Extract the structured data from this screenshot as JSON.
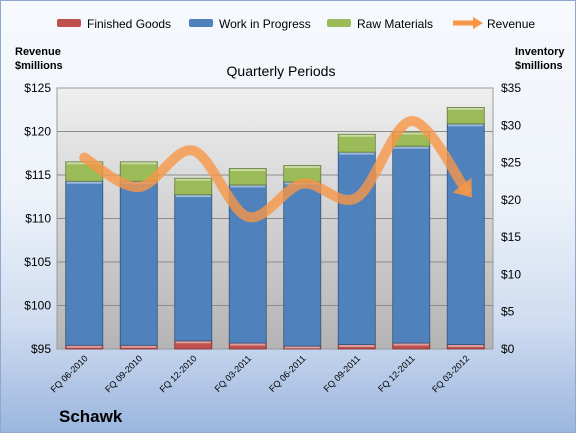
{
  "chart_data": {
    "type": "bar",
    "subtitle": "Quarterly Periods",
    "company": "Schawk",
    "left_axis_title": [
      "Revenue",
      "$millions"
    ],
    "right_axis_title": [
      "Inventory",
      "$millions"
    ],
    "categories": [
      "FQ 06-2010",
      "FQ 09-2010",
      "FQ 12-2010",
      "FQ 03-2011",
      "FQ 06-2011",
      "FQ 09-2011",
      "FQ 12-2011",
      "FQ 03-2012"
    ],
    "series": [
      {
        "name": "Finished Goods",
        "axis": "right",
        "stacked": true,
        "color": "#c0504d",
        "values": [
          0.5,
          0.5,
          1.1,
          0.8,
          0.4,
          0.6,
          0.8,
          0.6
        ]
      },
      {
        "name": "Work in Progress",
        "axis": "right",
        "stacked": true,
        "color": "#4f81bd",
        "values": [
          22.0,
          22.0,
          19.6,
          21.2,
          22.0,
          25.8,
          26.4,
          29.6
        ]
      },
      {
        "name": "Raw Materials",
        "axis": "right",
        "stacked": true,
        "color": "#9bbb59",
        "values": [
          2.6,
          2.6,
          2.2,
          2.2,
          2.2,
          2.4,
          1.9,
          2.2
        ]
      },
      {
        "name": "Revenue",
        "axis": "left",
        "type": "line",
        "color": "#f79646",
        "values": [
          117.0,
          113.6,
          117.8,
          110.2,
          114.0,
          112.4,
          121.2,
          113.3
        ]
      }
    ],
    "left_axis": {
      "min": 95,
      "max": 125,
      "step": 5,
      "labels": [
        "$95",
        "$100",
        "$105",
        "$110",
        "$115",
        "$120",
        "$125"
      ]
    },
    "right_axis": {
      "min": 0,
      "max": 35,
      "step": 5,
      "labels": [
        "$0",
        "$5",
        "$10",
        "$15",
        "$20",
        "$25",
        "$30",
        "$35"
      ]
    },
    "grid": true,
    "legend_position": "top"
  }
}
